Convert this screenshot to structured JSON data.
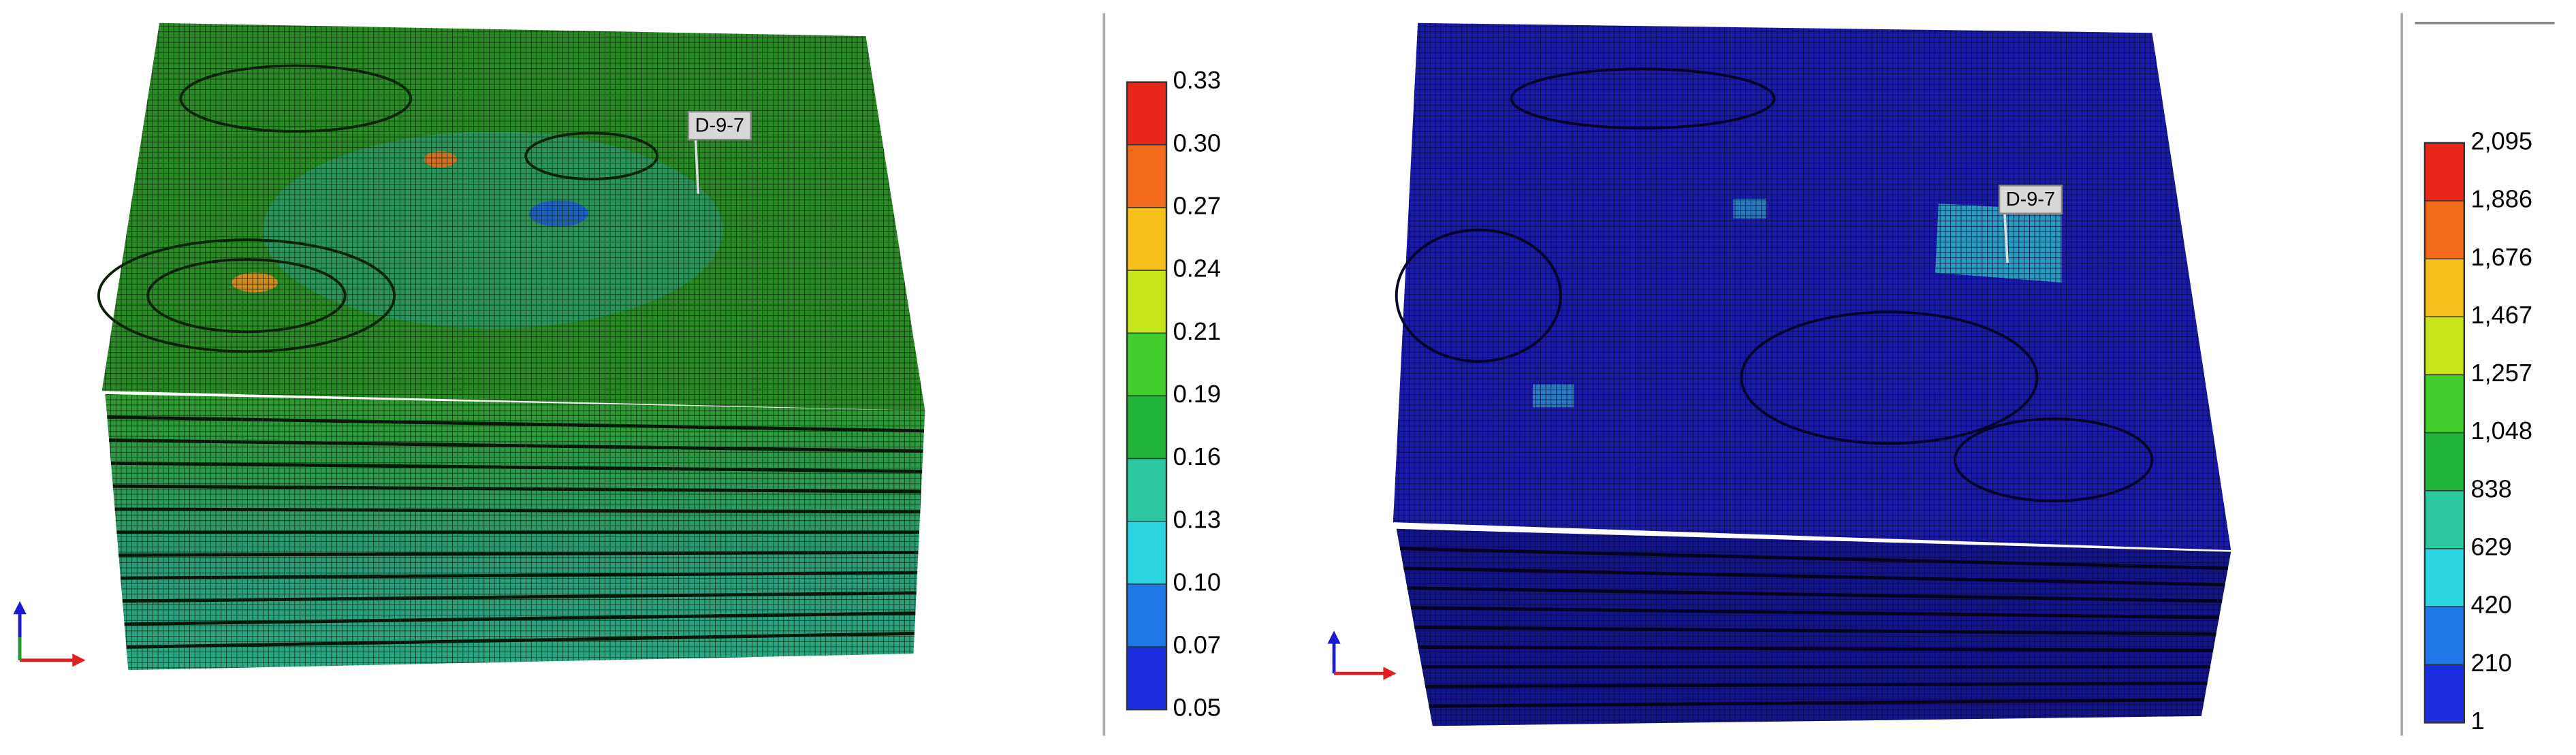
{
  "panels": [
    {
      "well_label": "D-9-7",
      "colorbar": {
        "labels": [
          "0.33",
          "0.30",
          "0.27",
          "0.24",
          "0.21",
          "0.19",
          "0.16",
          "0.13",
          "0.10",
          "0.07",
          "0.05"
        ],
        "colors": [
          "#e8261a",
          "#f26a1c",
          "#f5c01a",
          "#c8e41c",
          "#3fce2a",
          "#22b43a",
          "#2ec8a0",
          "#2ad4e0",
          "#1e78e6",
          "#1a2ee0"
        ]
      }
    },
    {
      "well_label": "D-9-7",
      "colorbar": {
        "labels": [
          "2,095",
          "1,886",
          "1,676",
          "1,467",
          "1,257",
          "1,048",
          "838",
          "629",
          "420",
          "210",
          "1"
        ],
        "colors": [
          "#e8261a",
          "#f26a1c",
          "#f5c01a",
          "#c8e41c",
          "#3fce2a",
          "#22b43a",
          "#2ec8a0",
          "#2ad4e0",
          "#1e78e6",
          "#1a2ee0"
        ]
      }
    }
  ]
}
